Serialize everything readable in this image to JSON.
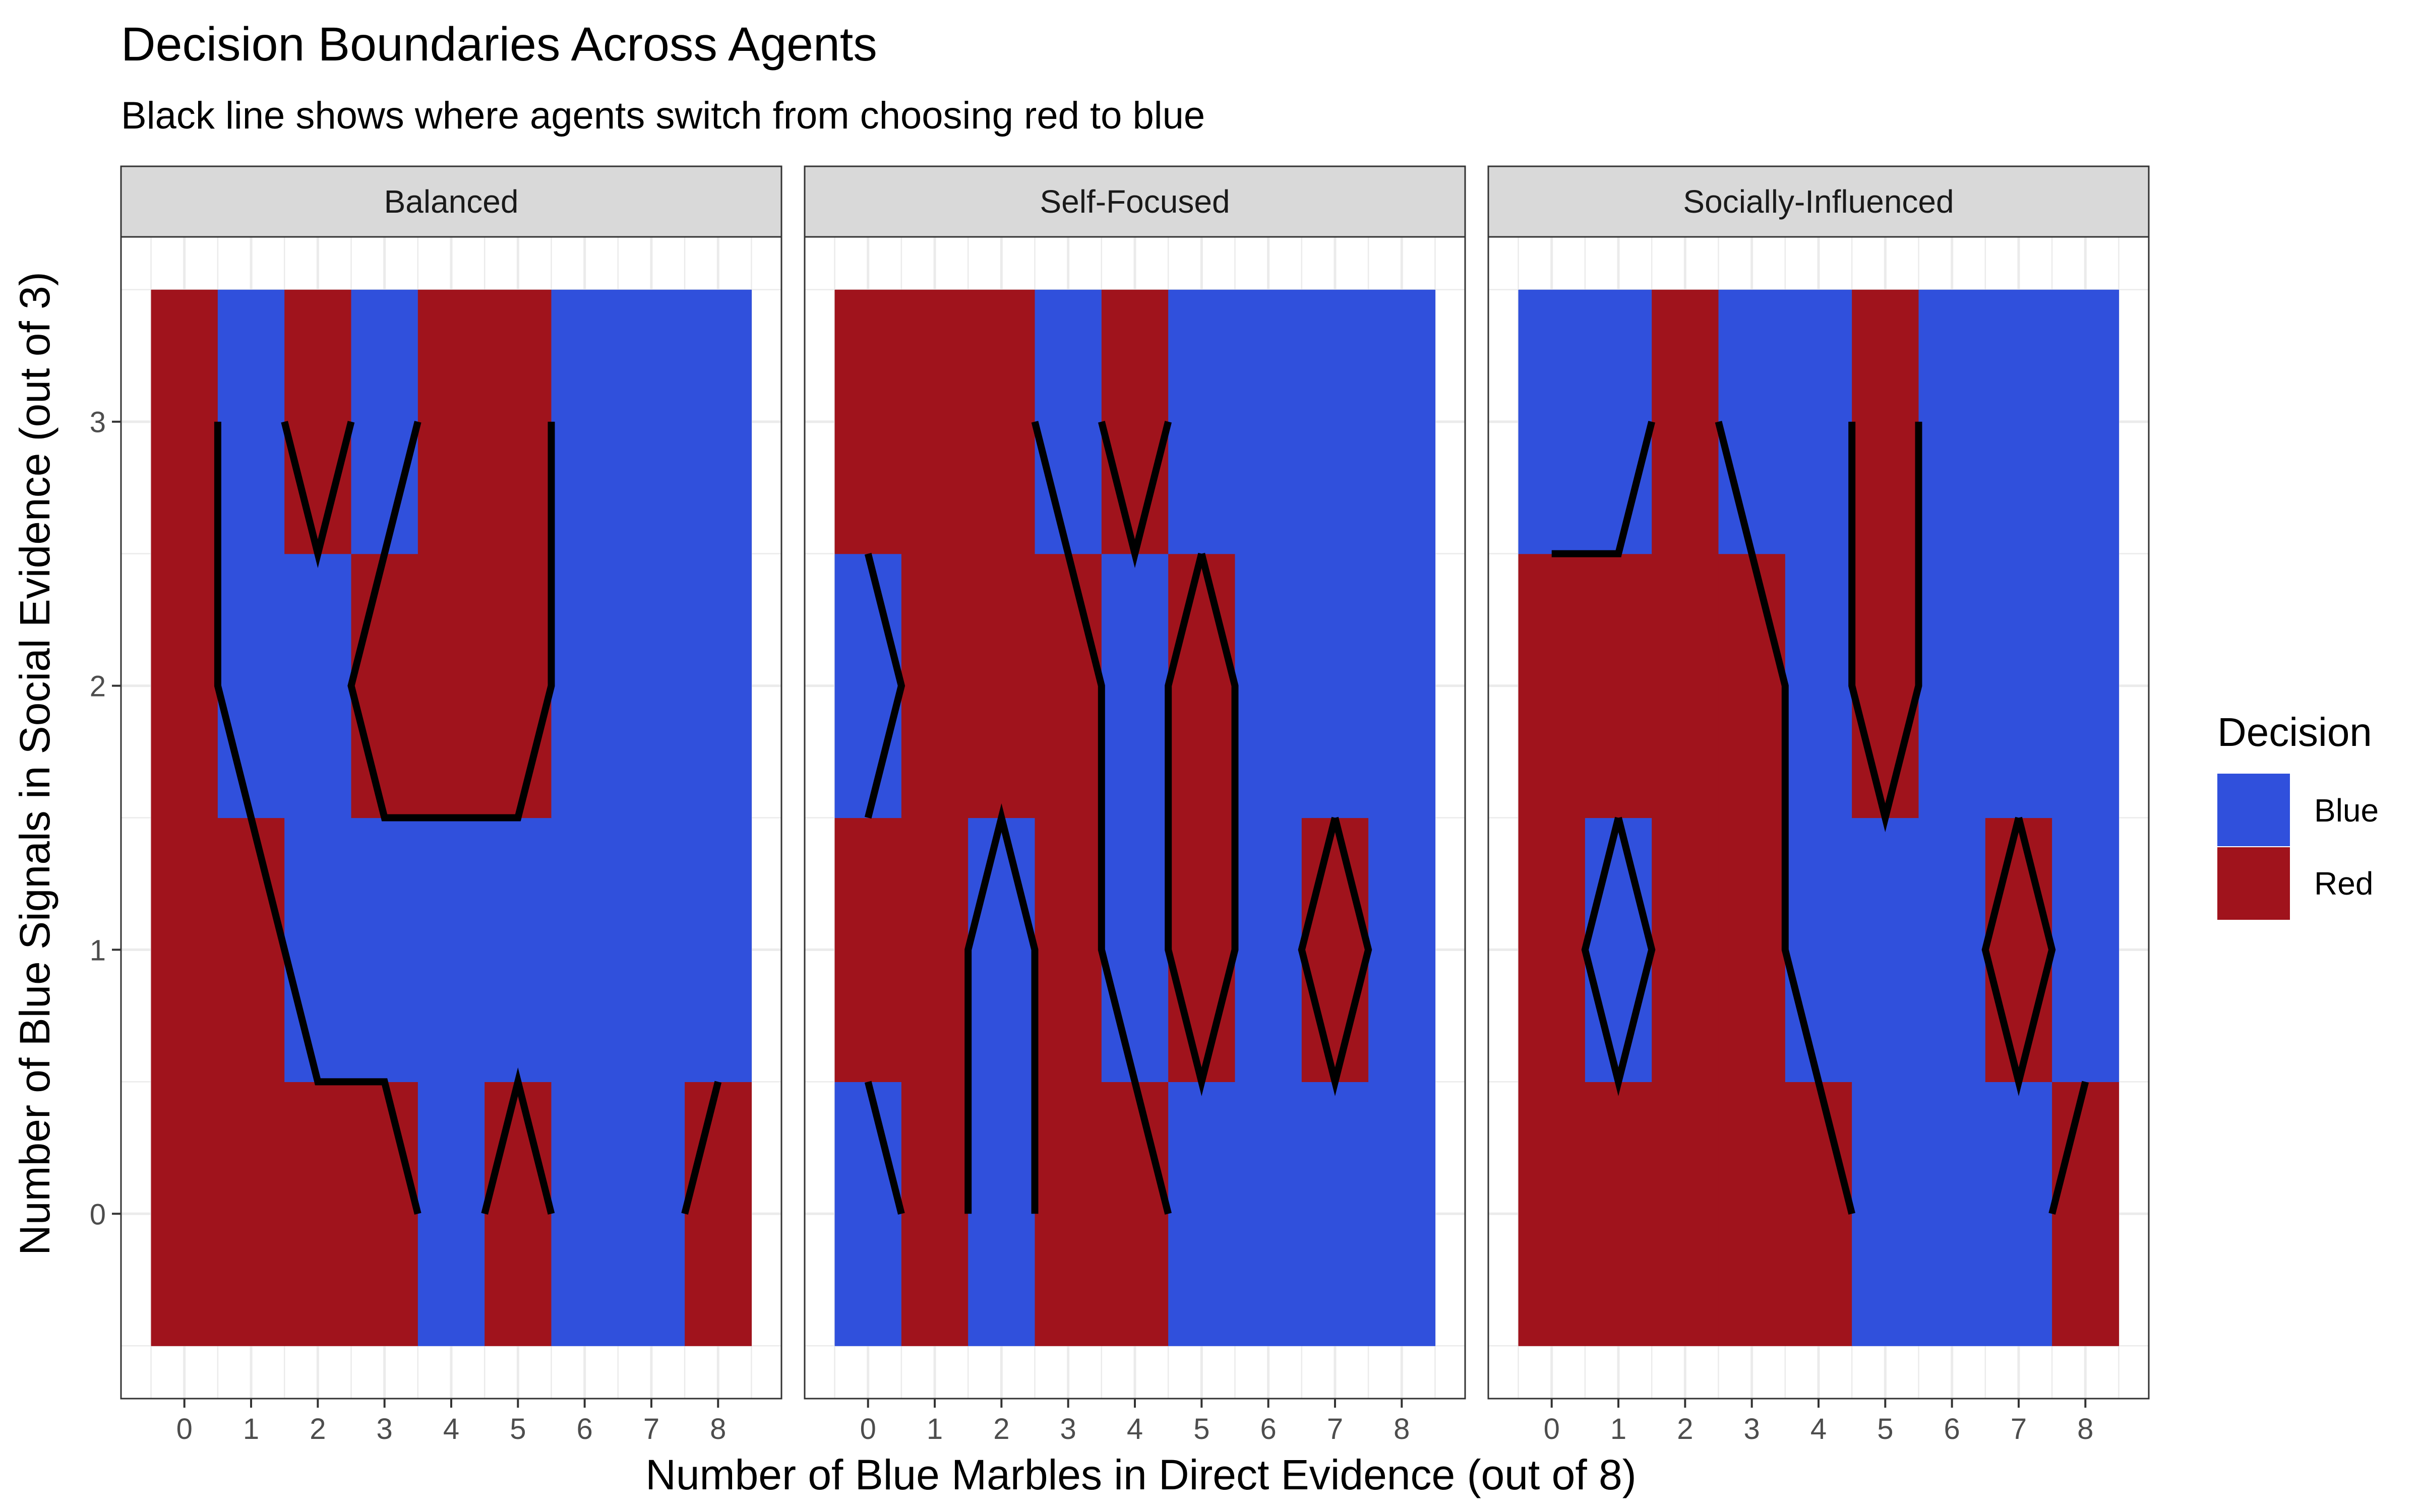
{
  "chart_data": {
    "type": "heatmap",
    "title": "Decision Boundaries Across Agents",
    "subtitle": "Black line shows where agents switch from choosing red to blue",
    "xlabel": "Number of Blue Marbles in Direct Evidence (out of 8)",
    "ylabel": "Number of Blue Signals in Social Evidence (out of 3)",
    "x_ticks": [
      "0",
      "1",
      "2",
      "3",
      "4",
      "5",
      "6",
      "7",
      "8"
    ],
    "y_ticks": [
      "0",
      "1",
      "2",
      "3"
    ],
    "xlim": [
      -0.5,
      8.5
    ],
    "ylim": [
      -0.5,
      3.5
    ],
    "grid": true,
    "legend": {
      "title": "Decision",
      "position": "right",
      "entries": [
        {
          "label": "Blue",
          "color": "#3050dc"
        },
        {
          "label": "Red",
          "color": "#a0131c"
        }
      ]
    },
    "colors": {
      "Blue": "#3050dc",
      "Red": "#a0131c",
      "boundary": "#000000"
    },
    "panels": [
      {
        "name": "Balanced",
        "decisions": {
          "0": [
            "R",
            "R",
            "R",
            "R",
            "B",
            "R",
            "B",
            "B",
            "R"
          ],
          "1": [
            "R",
            "R",
            "B",
            "B",
            "B",
            "B",
            "B",
            "B",
            "B"
          ],
          "2": [
            "R",
            "B",
            "B",
            "R",
            "R",
            "R",
            "B",
            "B",
            "B"
          ],
          "3": [
            "R",
            "B",
            "R",
            "B",
            "R",
            "R",
            "B",
            "B",
            "B"
          ]
        },
        "boundary_paths": [
          [
            [
              0.5,
              3
            ],
            [
              0.5,
              2
            ],
            [
              1.5,
              1
            ],
            [
              2,
              0.5
            ],
            [
              3,
              0.5
            ],
            [
              3.5,
              0
            ]
          ],
          [
            [
              1.5,
              3
            ],
            [
              2,
              2.5
            ],
            [
              2.5,
              3
            ]
          ],
          [
            [
              3.5,
              3
            ],
            [
              2.5,
              2
            ],
            [
              3,
              1.5
            ],
            [
              5,
              1.5
            ],
            [
              5.5,
              2
            ],
            [
              5.5,
              3
            ]
          ],
          [
            [
              4.5,
              0
            ],
            [
              5,
              0.5
            ],
            [
              5.5,
              0
            ]
          ],
          [
            [
              7.5,
              0
            ],
            [
              8,
              0.5
            ]
          ]
        ]
      },
      {
        "name": "Self-Focused",
        "decisions": {
          "0": [
            "B",
            "R",
            "B",
            "R",
            "R",
            "B",
            "B",
            "B",
            "B"
          ],
          "1": [
            "R",
            "R",
            "B",
            "R",
            "B",
            "R",
            "B",
            "R",
            "B"
          ],
          "2": [
            "B",
            "R",
            "R",
            "R",
            "B",
            "R",
            "B",
            "B",
            "B"
          ],
          "3": [
            "R",
            "R",
            "R",
            "B",
            "R",
            "B",
            "B",
            "B",
            "B"
          ]
        },
        "boundary_paths": [
          [
            [
              0,
              2.5
            ],
            [
              0.5,
              2
            ],
            [
              0,
              1.5
            ]
          ],
          [
            [
              0,
              0.5
            ],
            [
              0.5,
              0
            ]
          ],
          [
            [
              1.5,
              0
            ],
            [
              1.5,
              1
            ],
            [
              2,
              1.5
            ],
            [
              2.5,
              1
            ],
            [
              2.5,
              0
            ]
          ],
          [
            [
              2.5,
              3
            ],
            [
              3.5,
              2
            ],
            [
              3.5,
              1
            ],
            [
              4.5,
              0
            ]
          ],
          [
            [
              3.5,
              3
            ],
            [
              4,
              2.5
            ],
            [
              4.5,
              3
            ]
          ],
          [
            [
              5,
              2.5
            ],
            [
              5.5,
              2
            ],
            [
              5.5,
              1
            ],
            [
              5,
              0.5
            ],
            [
              4.5,
              1
            ],
            [
              4.5,
              2
            ],
            [
              5,
              2.5
            ]
          ],
          [
            [
              7,
              1.5
            ],
            [
              7.5,
              1
            ],
            [
              7,
              0.5
            ],
            [
              6.5,
              1
            ],
            [
              7,
              1.5
            ]
          ]
        ]
      },
      {
        "name": "Socially-Influenced",
        "decisions": {
          "0": [
            "R",
            "R",
            "R",
            "R",
            "R",
            "B",
            "B",
            "B",
            "R"
          ],
          "1": [
            "R",
            "B",
            "R",
            "R",
            "B",
            "B",
            "B",
            "R",
            "B"
          ],
          "2": [
            "R",
            "R",
            "R",
            "R",
            "B",
            "R",
            "B",
            "B",
            "B"
          ],
          "3": [
            "B",
            "B",
            "R",
            "B",
            "B",
            "R",
            "B",
            "B",
            "B"
          ]
        },
        "boundary_paths": [
          [
            [
              0,
              2.5
            ],
            [
              1,
              2.5
            ],
            [
              1.5,
              3
            ]
          ],
          [
            [
              2.5,
              3
            ],
            [
              3.5,
              2
            ],
            [
              3.5,
              1
            ],
            [
              4.5,
              0
            ]
          ],
          [
            [
              4.5,
              3
            ],
            [
              4.5,
              2
            ],
            [
              5,
              1.5
            ],
            [
              5.5,
              2
            ],
            [
              5.5,
              3
            ]
          ],
          [
            [
              1,
              1.5
            ],
            [
              1.5,
              1
            ],
            [
              1,
              0.5
            ],
            [
              0.5,
              1
            ],
            [
              1,
              1.5
            ]
          ],
          [
            [
              7,
              1.5
            ],
            [
              7.5,
              1
            ],
            [
              7,
              0.5
            ],
            [
              6.5,
              1
            ],
            [
              7,
              1.5
            ]
          ],
          [
            [
              7.5,
              0
            ],
            [
              8,
              0.5
            ]
          ]
        ]
      }
    ]
  }
}
